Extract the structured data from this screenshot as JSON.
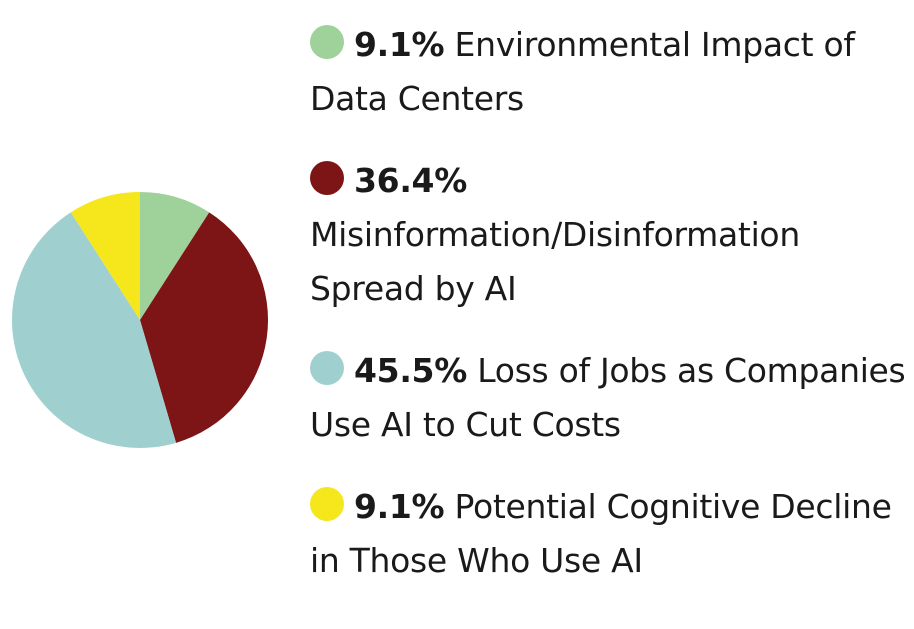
{
  "chart_data": {
    "type": "pie",
    "title": "",
    "legend_position": "right",
    "slices": [
      {
        "percent_label": "9.1%",
        "label": "Environmental Impact of Data Centers",
        "value": 9.1,
        "color": "#9fd19b"
      },
      {
        "percent_label": "36.4%",
        "label": "Misinformation/Disinformation Spread by AI",
        "value": 36.4,
        "color": "#7d1416"
      },
      {
        "percent_label": "45.5%",
        "label": "Loss of Jobs as Companies Use AI to Cut Costs",
        "value": 45.5,
        "color": "#9fd0cf"
      },
      {
        "percent_label": "9.1%",
        "label": "Potential Cognitive Decline in Those Who Use AI",
        "value": 9.1,
        "color": "#f5e71c"
      }
    ]
  }
}
